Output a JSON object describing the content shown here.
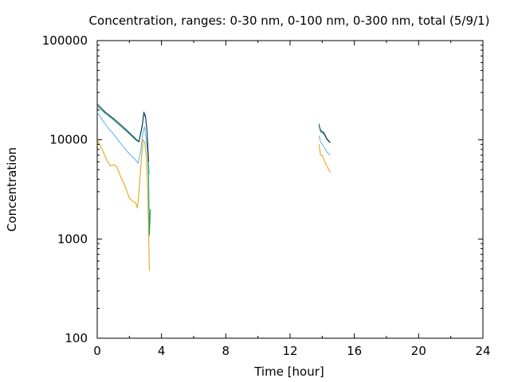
{
  "chart_data": {
    "type": "line",
    "title": "Concentration, ranges: 0-30 nm, 0-100 nm, 0-300 nm, total (5/9/1)",
    "xlabel": "Time [hour]",
    "ylabel": "Concentration",
    "xlim": [
      0,
      24
    ],
    "ylim": [
      100,
      100000
    ],
    "yscale": "log",
    "x_ticks": [
      0,
      4,
      8,
      12,
      16,
      20,
      24
    ],
    "y_ticks": [
      100,
      1000,
      10000,
      100000
    ],
    "grid": false,
    "legend": "none",
    "series": [
      {
        "color": "#e69f00",
        "segments": [
          [
            [
              0,
              10000
            ],
            [
              0.3,
              8000
            ],
            [
              0.6,
              6200
            ],
            [
              0.8,
              5500
            ],
            [
              1.0,
              5600
            ],
            [
              1.2,
              5400
            ],
            [
              1.4,
              4500
            ],
            [
              1.7,
              3500
            ],
            [
              2.0,
              2600
            ],
            [
              2.2,
              2400
            ],
            [
              2.4,
              2300
            ],
            [
              2.5,
              2050
            ],
            [
              2.6,
              3000
            ],
            [
              2.75,
              6500
            ],
            [
              2.85,
              10000
            ],
            [
              2.95,
              9500
            ],
            [
              3.05,
              7000
            ],
            [
              3.1,
              4500
            ],
            [
              3.15,
              2800
            ],
            [
              3.25,
              480
            ]
          ],
          [
            [
              13.8,
              9000
            ],
            [
              13.9,
              7000
            ],
            [
              14.0,
              7000
            ],
            [
              14.2,
              5800
            ],
            [
              14.35,
              5200
            ],
            [
              14.5,
              4700
            ]
          ]
        ]
      },
      {
        "color": "#56b4e9",
        "segments": [
          [
            [
              0,
              19000
            ],
            [
              0.3,
              16000
            ],
            [
              0.7,
              13000
            ],
            [
              1.0,
              11500
            ],
            [
              1.5,
              9000
            ],
            [
              2.0,
              7200
            ],
            [
              2.3,
              6500
            ],
            [
              2.55,
              5800
            ],
            [
              2.7,
              7500
            ],
            [
              2.85,
              12000
            ],
            [
              2.95,
              13500
            ],
            [
              3.05,
              10000
            ],
            [
              3.15,
              7000
            ],
            [
              3.25,
              4500
            ]
          ],
          [
            [
              13.8,
              11000
            ],
            [
              13.9,
              9500
            ],
            [
              14.1,
              8500
            ],
            [
              14.3,
              7500
            ],
            [
              14.5,
              7000
            ]
          ]
        ]
      },
      {
        "color": "#009e73",
        "segments": [
          [
            [
              0,
              22000
            ],
            [
              0.5,
              18500
            ],
            [
              1.0,
              16000
            ],
            [
              1.5,
              13500
            ],
            [
              2.0,
              11500
            ],
            [
              2.4,
              10000
            ],
            [
              2.6,
              9500
            ],
            [
              2.8,
              13500
            ],
            [
              2.9,
              18000
            ],
            [
              3.0,
              17000
            ],
            [
              3.1,
              12000
            ],
            [
              3.2,
              4000
            ],
            [
              3.25,
              1100
            ],
            [
              3.3,
              2000
            ]
          ],
          [
            [
              13.8,
              14500
            ],
            [
              13.9,
              12000
            ],
            [
              14.1,
              11500
            ],
            [
              14.3,
              10000
            ],
            [
              14.5,
              9300
            ]
          ]
        ]
      },
      {
        "color": "#1f2d5c",
        "segments": [
          [
            [
              0,
              23000
            ],
            [
              0.5,
              19000
            ],
            [
              1.0,
              16500
            ],
            [
              1.5,
              14000
            ],
            [
              2.0,
              11800
            ],
            [
              2.4,
              10200
            ],
            [
              2.6,
              9600
            ],
            [
              2.8,
              14000
            ],
            [
              2.9,
              19000
            ],
            [
              3.0,
              17500
            ],
            [
              3.1,
              12500
            ],
            [
              3.2,
              6000
            ]
          ],
          [
            [
              13.8,
              14000
            ],
            [
              13.9,
              12500
            ],
            [
              14.1,
              11800
            ],
            [
              14.3,
              10200
            ],
            [
              14.5,
              9400
            ]
          ]
        ]
      }
    ]
  }
}
